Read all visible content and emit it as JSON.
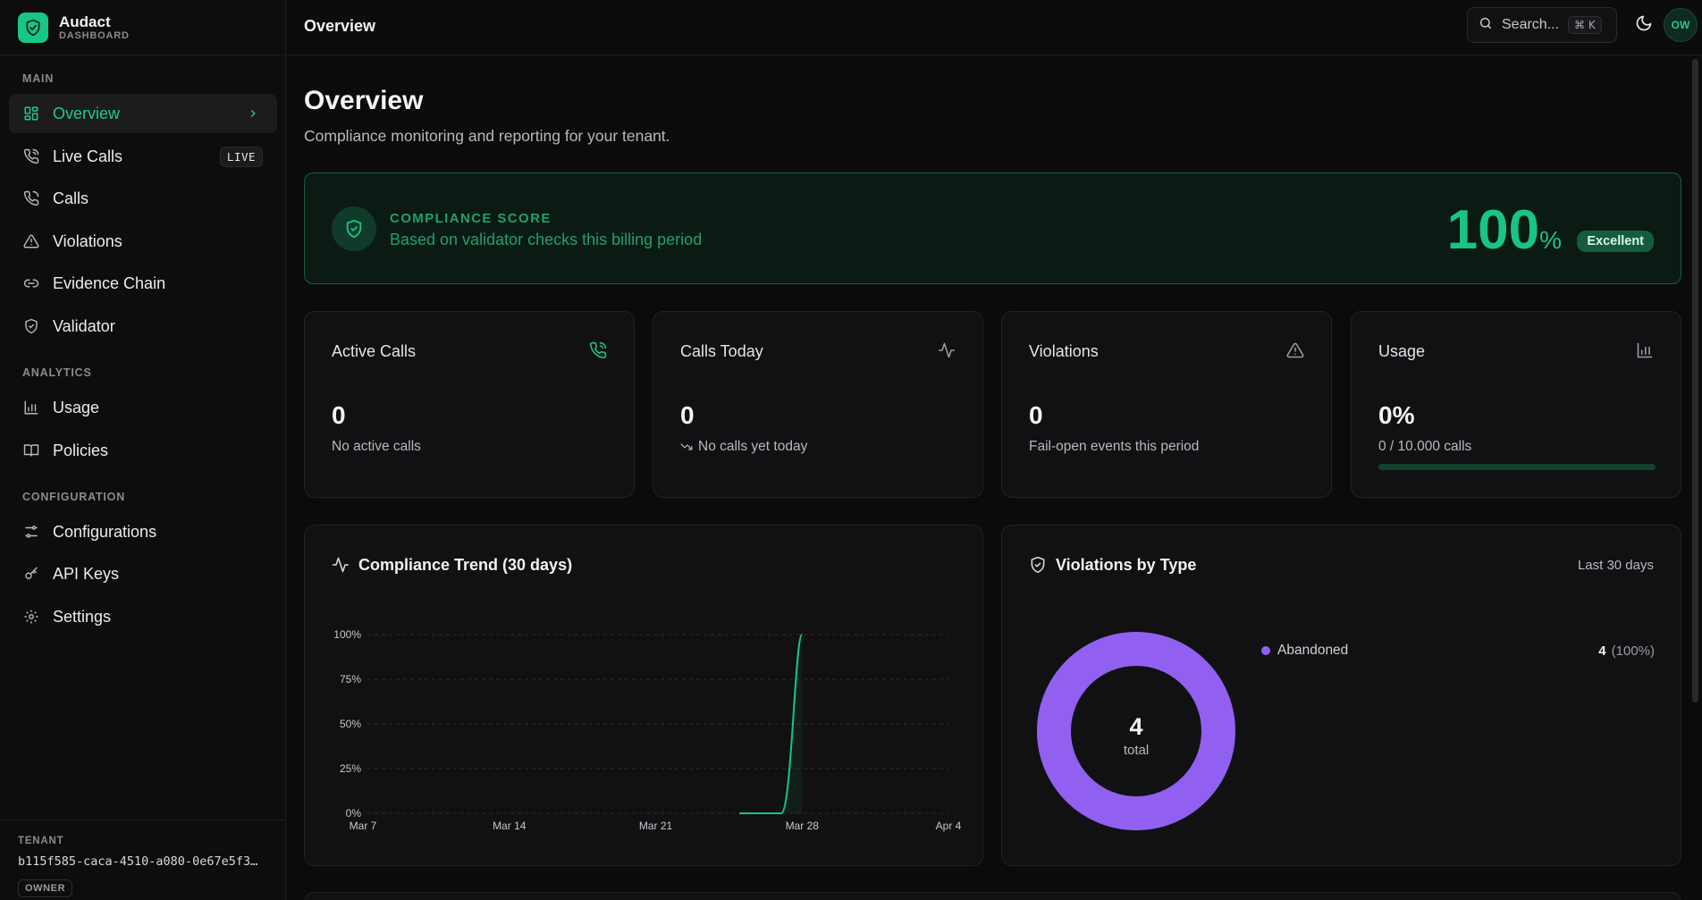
{
  "brand": {
    "name": "Audact",
    "sub": "DASHBOARD"
  },
  "sidebar": {
    "sections": [
      {
        "label": "MAIN"
      },
      {
        "label": "ANALYTICS"
      },
      {
        "label": "CONFIGURATION"
      }
    ],
    "items": [
      {
        "label": "Overview",
        "icon": "layout-grid-icon"
      },
      {
        "label": "Live Calls",
        "icon": "phone-call-icon",
        "badge": "LIVE"
      },
      {
        "label": "Calls",
        "icon": "phone-icon"
      },
      {
        "label": "Violations",
        "icon": "alert-triangle-icon"
      },
      {
        "label": "Evidence Chain",
        "icon": "link-icon"
      },
      {
        "label": "Validator",
        "icon": "shield-check-icon"
      },
      {
        "label": "Usage",
        "icon": "bar-chart-icon"
      },
      {
        "label": "Policies",
        "icon": "book-open-icon"
      },
      {
        "label": "Configurations",
        "icon": "sliders-icon"
      },
      {
        "label": "API Keys",
        "icon": "key-icon"
      },
      {
        "label": "Settings",
        "icon": "gear-icon"
      }
    ],
    "tenant": {
      "label": "TENANT",
      "id": "b115f585-caca-4510-a080-0e67e5f3…",
      "role": "OWNER"
    }
  },
  "header": {
    "title": "Overview",
    "search_placeholder": "Search...",
    "shortcut": "⌘ K",
    "avatar_initials": "OW"
  },
  "page": {
    "title": "Overview",
    "subtitle": "Compliance monitoring and reporting for your tenant."
  },
  "compliance": {
    "label": "COMPLIANCE SCORE",
    "description": "Based on validator checks this billing period",
    "value": "100",
    "unit": "%",
    "badge": "Excellent"
  },
  "stats": [
    {
      "title": "Active Calls",
      "value": "0",
      "sub": "No active calls",
      "icon": "phone-call-icon"
    },
    {
      "title": "Calls Today",
      "value": "0",
      "sub": "No calls yet today",
      "icon": "activity-icon"
    },
    {
      "title": "Violations",
      "value": "0",
      "sub": "Fail-open events this period",
      "icon": "alert-triangle-icon"
    },
    {
      "title": "Usage",
      "value": "0%",
      "sub": "0 / 10.000 calls",
      "icon": "bar-chart-icon",
      "progress": 0
    }
  ],
  "trend": {
    "title": "Compliance Trend (30 days)",
    "chart_data": {
      "type": "line",
      "title": "Compliance Trend (30 days)",
      "x_ticks": [
        "Mar 7",
        "Mar 14",
        "Mar 21",
        "Mar 28",
        "Apr 4"
      ],
      "y_ticks": [
        "100%",
        "75%",
        "50%",
        "25%",
        "0%"
      ],
      "ylim": [
        0,
        100
      ],
      "grid": true,
      "series": [
        {
          "x": [
            "Mar 25",
            "Mar 26",
            "Mar 27",
            "Mar 28"
          ],
          "values": [
            0,
            0,
            0,
            100
          ]
        }
      ],
      "color": "#19c486"
    }
  },
  "violations_by_type": {
    "title": "Violations by Type",
    "range": "Last 30 days",
    "total": "4",
    "total_label": "total",
    "chart_data": {
      "type": "pie",
      "categories": [
        "Abandoned"
      ],
      "values": [
        4
      ],
      "colors": [
        "#9160f0"
      ]
    },
    "legend": [
      {
        "name": "Abandoned",
        "count": "4",
        "pct": "(100%)"
      }
    ]
  }
}
